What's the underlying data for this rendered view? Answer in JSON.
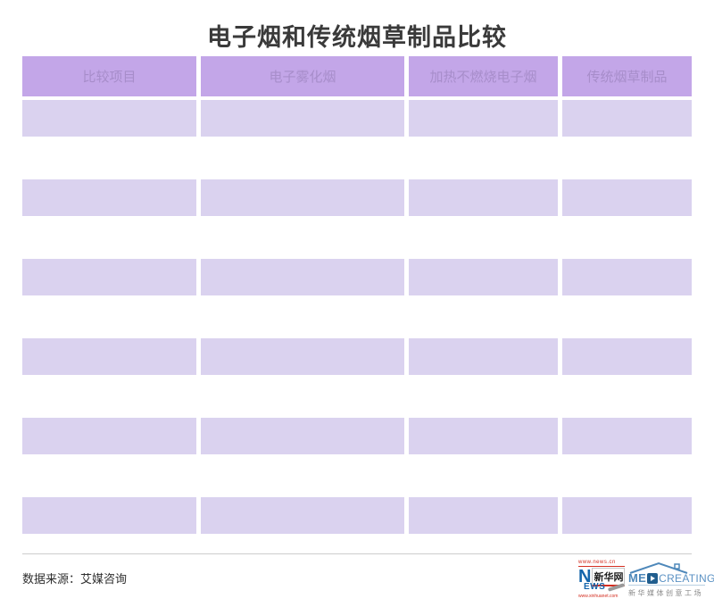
{
  "title": "电子烟和传统烟草制品比较",
  "table": {
    "headers": [
      "比较项目",
      "电子雾化烟",
      "加热不燃烧电子烟",
      "传统烟草制品"
    ],
    "rows": [
      [
        "",
        "",
        "",
        ""
      ],
      [
        "",
        "",
        "",
        ""
      ],
      [
        "",
        "",
        "",
        ""
      ],
      [
        "",
        "",
        "",
        ""
      ],
      [
        "",
        "",
        "",
        ""
      ],
      [
        "",
        "",
        "",
        ""
      ]
    ]
  },
  "footer": {
    "source": "数据来源：艾媒咨询"
  },
  "logos": {
    "xinhua": {
      "url_top": "www.news.cn",
      "n_letter": "N",
      "name": "新华网",
      "ews": "EWS",
      "url_bottom": "www.xinhuanet.com"
    },
    "medcreating": {
      "me": "ME",
      "creating": "CREATING",
      "subtitle": "新华媒体创意工场"
    }
  },
  "colors": {
    "header_bg": "#c3a6e8",
    "header_text": "#a78dca",
    "row_bg": "#dad2ef",
    "title_text": "#3a3a3a",
    "divider": "#cdcdcd",
    "xinhua_red": "#d42e20",
    "xinhua_blue": "#1565ab",
    "med_blue": "#4e88ba",
    "med_dark_blue": "#215e8e"
  }
}
